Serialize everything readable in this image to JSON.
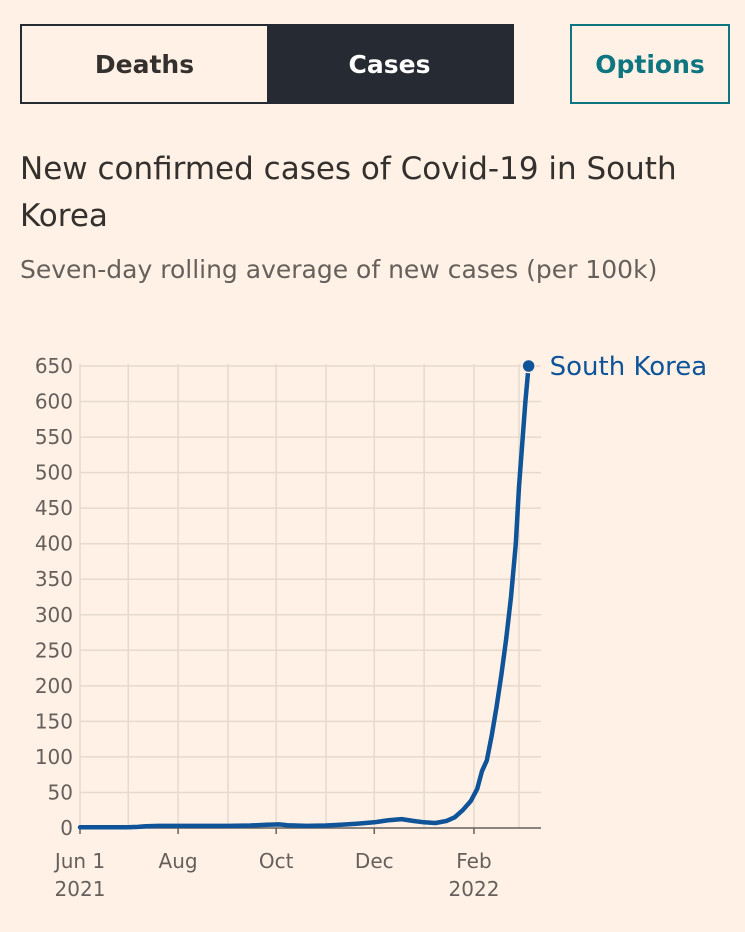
{
  "toggle": {
    "deaths_label": "Deaths",
    "cases_label": "Cases",
    "selected": "Cases"
  },
  "options_label": "Options",
  "colors": {
    "background": "#fff1e5",
    "series": "#0f5499",
    "accent": "#0d7680",
    "dark": "#262a33",
    "grid": "#e6d9ce"
  },
  "chart_data": {
    "type": "line",
    "title": "New confirmed cases of Covid-19 in South Korea",
    "subtitle": "Seven-day rolling average of new cases (per 100k)",
    "xlabel": "",
    "ylabel": "",
    "ylim": [
      0,
      650
    ],
    "xlim": [
      "2021-06-01",
      "2022-03-01"
    ],
    "grid": true,
    "yticks": [
      "0",
      "50",
      "100",
      "150",
      "200",
      "250",
      "300",
      "350",
      "400",
      "450",
      "500",
      "550",
      "600",
      "650"
    ],
    "xticks": [
      {
        "date": "2021-06-01",
        "label": "Jun 1",
        "sublabel": "2021"
      },
      {
        "date": "2021-08-01",
        "label": "Aug",
        "sublabel": ""
      },
      {
        "date": "2021-10-01",
        "label": "Oct",
        "sublabel": ""
      },
      {
        "date": "2021-12-01",
        "label": "Dec",
        "sublabel": ""
      },
      {
        "date": "2022-02-01",
        "label": "Feb",
        "sublabel": "2022"
      }
    ],
    "series": [
      {
        "name": "South Korea",
        "points": [
          [
            "2021-06-01",
            1
          ],
          [
            "2021-06-15",
            1
          ],
          [
            "2021-07-01",
            1
          ],
          [
            "2021-07-07",
            1.5
          ],
          [
            "2021-07-12",
            2.5
          ],
          [
            "2021-07-20",
            3
          ],
          [
            "2021-08-01",
            3
          ],
          [
            "2021-08-15",
            3
          ],
          [
            "2021-09-01",
            3
          ],
          [
            "2021-09-15",
            3.5
          ],
          [
            "2021-09-25",
            4.5
          ],
          [
            "2021-10-03",
            5
          ],
          [
            "2021-10-08",
            4
          ],
          [
            "2021-10-20",
            3
          ],
          [
            "2021-11-01",
            3.5
          ],
          [
            "2021-11-10",
            4.5
          ],
          [
            "2021-11-20",
            6
          ],
          [
            "2021-12-01",
            8
          ],
          [
            "2021-12-10",
            11
          ],
          [
            "2021-12-18",
            12.5
          ],
          [
            "2021-12-25",
            10
          ],
          [
            "2022-01-01",
            8
          ],
          [
            "2022-01-08",
            7
          ],
          [
            "2022-01-15",
            10
          ],
          [
            "2022-01-20",
            15
          ],
          [
            "2022-01-25",
            25
          ],
          [
            "2022-01-30",
            38
          ],
          [
            "2022-02-03",
            55
          ],
          [
            "2022-02-06",
            80
          ],
          [
            "2022-02-09",
            95
          ],
          [
            "2022-02-12",
            130
          ],
          [
            "2022-02-15",
            170
          ],
          [
            "2022-02-18",
            215
          ],
          [
            "2022-02-21",
            265
          ],
          [
            "2022-02-24",
            325
          ],
          [
            "2022-02-27",
            400
          ],
          [
            "2022-03-01",
            480
          ],
          [
            "2022-03-03",
            540
          ],
          [
            "2022-03-05",
            600
          ],
          [
            "2022-03-07",
            650
          ]
        ]
      }
    ]
  }
}
